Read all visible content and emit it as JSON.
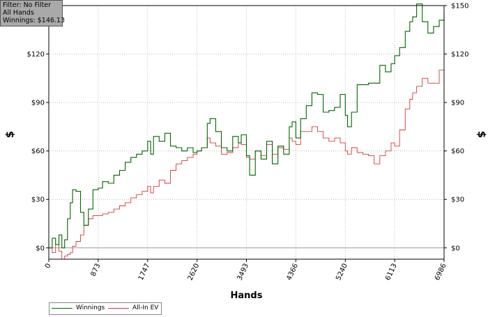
{
  "info": {
    "filter": "Filter: No Filter",
    "scope": "All Hands",
    "winnings": "Winnings: $146.13"
  },
  "colors": {
    "winnings": "#006400",
    "allin_ev": "#d43a3a",
    "grid": "#bbbbbb",
    "zero_line": "#999999"
  },
  "chart_data": {
    "type": "line",
    "title": "",
    "xlabel": "Hands",
    "ylabel": "$",
    "ylabel_right": "$",
    "xlim": [
      0,
      6986
    ],
    "ylim": [
      -7,
      150
    ],
    "x_ticks": [
      0,
      873,
      1747,
      2620,
      3493,
      4366,
      5240,
      6113,
      6986
    ],
    "y_ticks": [
      0,
      30,
      60,
      90,
      120,
      150
    ],
    "y_tick_labels": [
      "$0",
      "$30",
      "$60",
      "$90",
      "$120",
      "$150"
    ],
    "grid": true,
    "legend_position": "bottom-left",
    "series": [
      {
        "name": "Winnings",
        "x": [
          0,
          60,
          120,
          180,
          230,
          280,
          330,
          380,
          420,
          480,
          560,
          620,
          700,
          780,
          873,
          950,
          1050,
          1150,
          1250,
          1350,
          1450,
          1550,
          1650,
          1747,
          1800,
          1850,
          1950,
          2050,
          2150,
          2250,
          2350,
          2450,
          2550,
          2620,
          2700,
          2800,
          2850,
          2950,
          3050,
          3150,
          3250,
          3350,
          3400,
          3493,
          3550,
          3650,
          3750,
          3850,
          3950,
          4050,
          4150,
          4250,
          4300,
          4366,
          4450,
          4550,
          4650,
          4750,
          4850,
          4950,
          5050,
          5150,
          5240,
          5280,
          5350,
          5450,
          5550,
          5650,
          5750,
          5850,
          5950,
          6050,
          6113,
          6200,
          6300,
          6380,
          6430,
          6500,
          6600,
          6700,
          6800,
          6900,
          6986
        ],
        "y": [
          0,
          6,
          2,
          8,
          0,
          5,
          18,
          28,
          36,
          35,
          22,
          14,
          24,
          36,
          37,
          41,
          40,
          45,
          48,
          53,
          56,
          58,
          60,
          66,
          58,
          69,
          66,
          71,
          63,
          62,
          60,
          62,
          59,
          60,
          62,
          77,
          80,
          72,
          62,
          60,
          69,
          65,
          70,
          57,
          45,
          60,
          55,
          66,
          52,
          63,
          58,
          75,
          78,
          68,
          80,
          88,
          96,
          95,
          84,
          85,
          87,
          95,
          82,
          75,
          84,
          101,
          101,
          102,
          102,
          113,
          109,
          114,
          119,
          124,
          134,
          140,
          143,
          151,
          140,
          133,
          137,
          141,
          146
        ]
      },
      {
        "name": "All-In EV",
        "x": [
          0,
          60,
          120,
          180,
          230,
          280,
          330,
          380,
          420,
          480,
          560,
          620,
          700,
          780,
          873,
          950,
          1050,
          1150,
          1250,
          1350,
          1450,
          1550,
          1650,
          1747,
          1800,
          1850,
          1950,
          2050,
          2150,
          2250,
          2350,
          2450,
          2550,
          2620,
          2700,
          2800,
          2850,
          2950,
          3050,
          3150,
          3250,
          3350,
          3400,
          3493,
          3550,
          3650,
          3750,
          3850,
          3950,
          4050,
          4150,
          4250,
          4300,
          4366,
          4450,
          4550,
          4650,
          4750,
          4850,
          4950,
          5050,
          5150,
          5240,
          5280,
          5350,
          5450,
          5550,
          5650,
          5750,
          5850,
          5950,
          6050,
          6113,
          6200,
          6300,
          6380,
          6430,
          6500,
          6600,
          6700,
          6800,
          6900,
          6986
        ],
        "y": [
          0,
          -3,
          2,
          -2,
          -7,
          -5,
          -4,
          -3,
          1,
          4,
          8,
          14,
          18,
          20,
          20,
          21,
          22,
          24,
          26,
          28,
          31,
          33,
          35,
          38,
          34,
          38,
          42,
          40,
          48,
          52,
          54,
          56,
          58,
          60,
          62,
          68,
          65,
          63,
          58,
          59,
          62,
          65,
          64,
          56,
          55,
          60,
          57,
          64,
          58,
          62,
          61,
          68,
          66,
          64,
          72,
          72,
          75,
          72,
          68,
          66,
          68,
          65,
          60,
          58,
          62,
          59,
          58,
          57,
          52,
          57,
          60,
          65,
          63,
          73,
          86,
          92,
          96,
          100,
          105,
          102,
          102,
          110,
          111
        ]
      }
    ]
  }
}
